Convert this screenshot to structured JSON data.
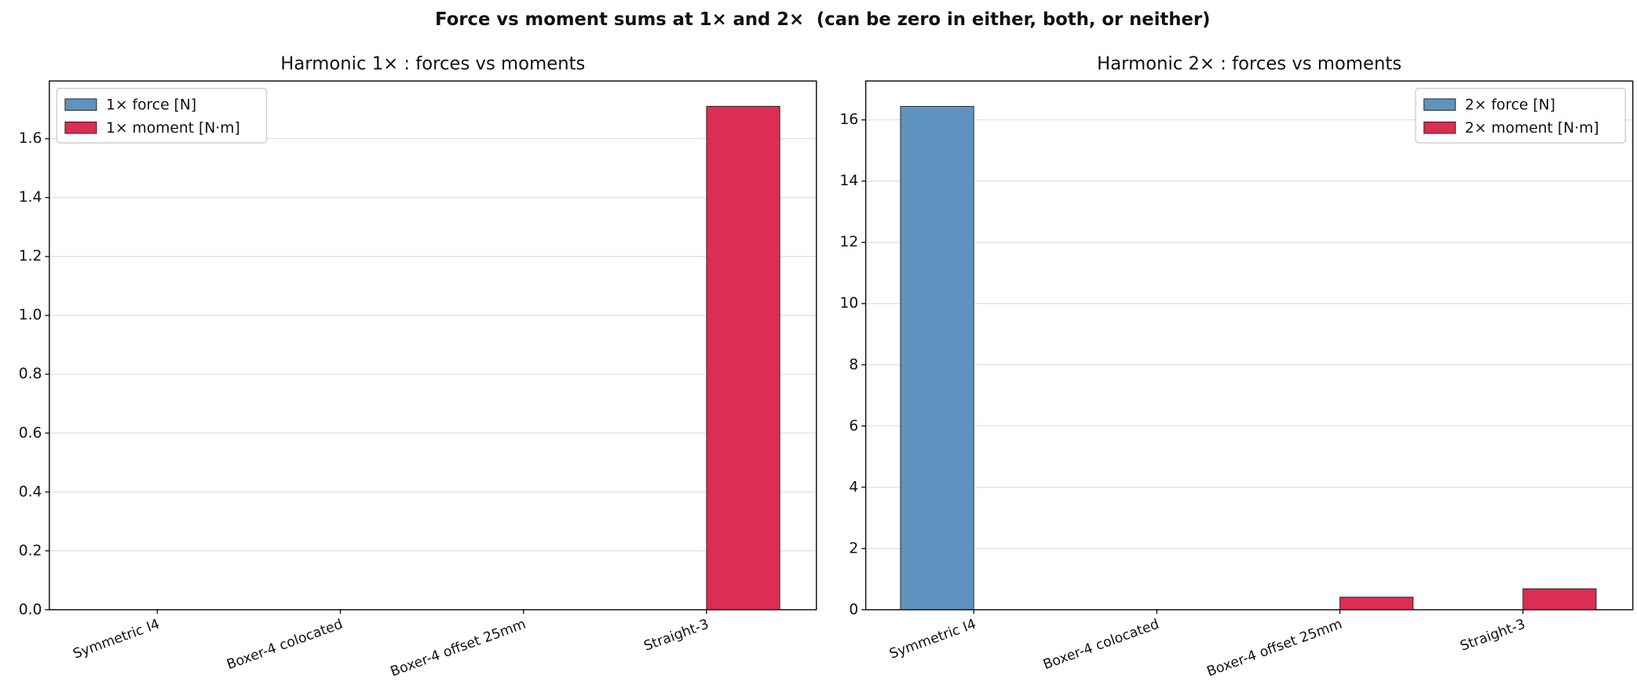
{
  "title": "Force vs moment sums at 1× and 2×  (can be zero in either, both, or neither)",
  "chart_data": [
    {
      "type": "bar",
      "title": "Harmonic 1× : forces vs moments",
      "categories": [
        "Symmetric I4",
        "Boxer-4 colocated",
        "Boxer-4 offset 25mm",
        "Straight-3"
      ],
      "series": [
        {
          "name": "1× force [N]",
          "color": "#5f93bf",
          "values": [
            0,
            0,
            0,
            0
          ]
        },
        {
          "name": "1× moment [N·m]",
          "color": "#dc2d52",
          "values": [
            0,
            0,
            0,
            1.71
          ]
        }
      ],
      "ylim": [
        0,
        1.796
      ],
      "yticks": [
        {
          "value": 0,
          "label": "0.0"
        },
        0.2,
        0.4,
        0.6,
        0.8,
        {
          "value": 1,
          "label": "1.0"
        },
        1.2,
        1.4,
        1.6
      ],
      "grid": true,
      "legend": "upper left"
    },
    {
      "type": "bar",
      "title": "Harmonic 2× : forces vs moments",
      "categories": [
        "Symmetric I4",
        "Boxer-4 colocated",
        "Boxer-4 offset 25mm",
        "Straight-3"
      ],
      "series": [
        {
          "name": "2× force [N]",
          "color": "#5f93bf",
          "values": [
            16.44,
            0,
            0,
            0
          ]
        },
        {
          "name": "2× moment [N·m]",
          "color": "#dc2d52",
          "values": [
            0,
            0,
            0.41,
            0.685
          ]
        }
      ],
      "ylim": [
        0,
        17.27
      ],
      "yticks": [
        0,
        2,
        4,
        6,
        8,
        10,
        12,
        14,
        16
      ],
      "grid": true,
      "legend": "upper right"
    }
  ]
}
